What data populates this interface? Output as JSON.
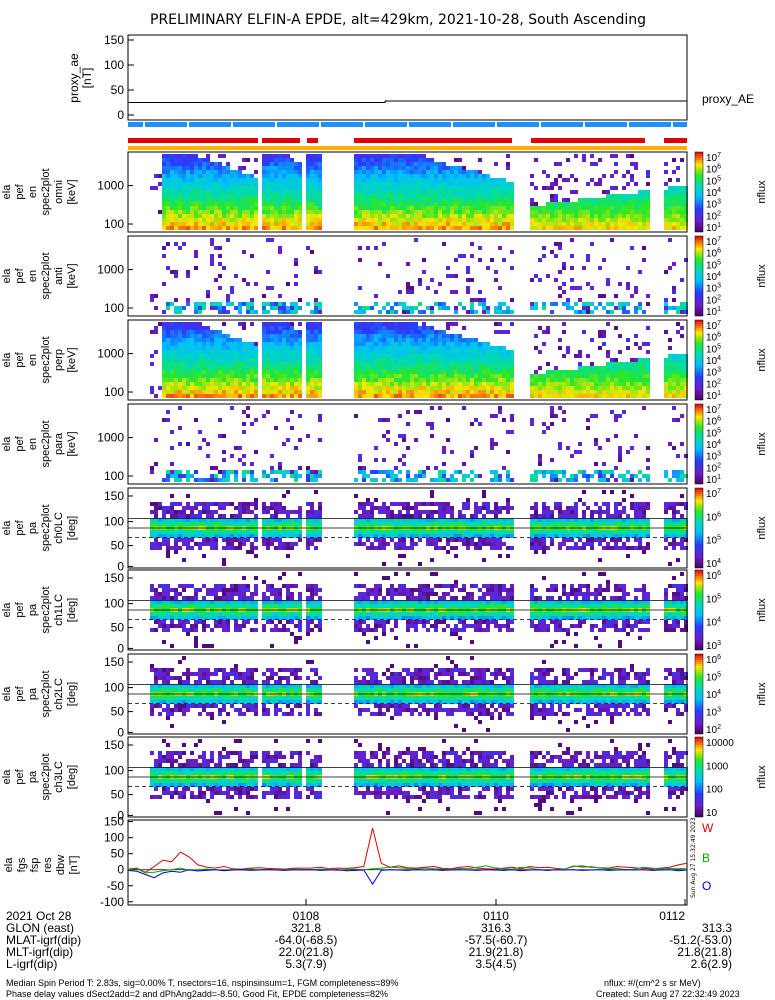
{
  "title": "PRELIMINARY ELFIN-A EPDE, alt=429km, 2021-10-28, South Ascending",
  "legend_proxy": "proxy_AE",
  "chart_data": [
    {
      "type": "line",
      "ylabel": [
        "proxy_ae",
        "[nT]"
      ],
      "yticks": [
        "150",
        "100",
        "50",
        "0"
      ],
      "ylim": [
        -10,
        160
      ],
      "series": [
        {
          "name": "proxy_AE",
          "x": [
            0,
            0.46,
            0.46,
            1.0
          ],
          "values": [
            25,
            25,
            28,
            28
          ]
        }
      ]
    },
    {
      "type": "heatmap",
      "panels": [
        {
          "ylabel": [
            "ela",
            "pef",
            "en",
            "spec2plot",
            "omni",
            "[keV]"
          ],
          "yticks": [
            "1000",
            "100"
          ],
          "cbar_ticks": [
            "10<sup>7</sup>",
            "10<sup>6</sup>",
            "10<sup>5</sup>",
            "10<sup>4</sup>",
            "10<sup>3</sup>",
            "10<sup>2</sup>",
            "10<sup>1</sup>"
          ],
          "zlabel": "nflux"
        },
        {
          "ylabel": [
            "ela",
            "pef",
            "en",
            "spec2plot",
            "anti",
            "[keV]"
          ],
          "yticks": [
            "1000",
            "100"
          ],
          "cbar_ticks": [
            "10<sup>7</sup>",
            "10<sup>6</sup>",
            "10<sup>5</sup>",
            "10<sup>4</sup>",
            "10<sup>3</sup>",
            "10<sup>2</sup>",
            "10<sup>1</sup>"
          ],
          "zlabel": "nflux"
        },
        {
          "ylabel": [
            "ela",
            "pef",
            "en",
            "spec2plot",
            "perp",
            "[keV]"
          ],
          "yticks": [
            "1000",
            "100"
          ],
          "cbar_ticks": [
            "10<sup>7</sup>",
            "10<sup>6</sup>",
            "10<sup>5</sup>",
            "10<sup>4</sup>",
            "10<sup>3</sup>",
            "10<sup>2</sup>",
            "10<sup>1</sup>"
          ],
          "zlabel": "nflux"
        },
        {
          "ylabel": [
            "ela",
            "pef",
            "en",
            "spec2plot",
            "para",
            "[keV]"
          ],
          "yticks": [
            "1000",
            "100"
          ],
          "cbar_ticks": [
            "10<sup>7</sup>",
            "10<sup>6</sup>",
            "10<sup>5</sup>",
            "10<sup>4</sup>",
            "10<sup>3</sup>",
            "10<sup>2</sup>",
            "10<sup>1</sup>"
          ],
          "zlabel": "nflux"
        },
        {
          "ylabel": [
            "ela",
            "pef",
            "pa",
            "spec2plot",
            "ch0LC",
            "[deg]"
          ],
          "yticks": [
            "150",
            "100",
            "50",
            "0"
          ],
          "cbar_ticks": [
            "10<sup>7</sup>",
            "10<sup>6</sup>",
            "10<sup>5</sup>",
            "10<sup>4</sup>"
          ],
          "zlabel": "nflux"
        },
        {
          "ylabel": [
            "ela",
            "pef",
            "pa",
            "spec2plot",
            "ch1LC",
            "[deg]"
          ],
          "yticks": [
            "150",
            "100",
            "50",
            "0"
          ],
          "cbar_ticks": [
            "10<sup>6</sup>",
            "10<sup>5</sup>",
            "10<sup>4</sup>",
            "10<sup>3</sup>"
          ],
          "zlabel": "nflux"
        },
        {
          "ylabel": [
            "ela",
            "pef",
            "pa",
            "spec2plot",
            "ch2LC",
            "[deg]"
          ],
          "yticks": [
            "150",
            "100",
            "50",
            "0"
          ],
          "cbar_ticks": [
            "10<sup>6</sup>",
            "10<sup>5</sup>",
            "10<sup>4</sup>",
            "10<sup>3</sup>",
            "10<sup>2</sup>"
          ],
          "zlabel": "nflux"
        },
        {
          "ylabel": [
            "ela",
            "pef",
            "pa",
            "spec2plot",
            "ch3LC",
            "[deg]"
          ],
          "yticks": [
            "150",
            "100",
            "50",
            "0"
          ],
          "cbar_ticks": [
            "10000",
            "1000",
            "100",
            "10"
          ],
          "zlabel": "nflux"
        }
      ]
    },
    {
      "type": "line",
      "ylabel": [
        "ela",
        "fgs",
        "fsp",
        "res",
        "dbw",
        "[nT]"
      ],
      "yticks": [
        "150",
        "100",
        "50",
        "0",
        "-50",
        "-100"
      ],
      "ylim": [
        -110,
        155
      ],
      "series": [
        {
          "name": "W",
          "color": "#e00000",
          "values": [
            2,
            5,
            -8,
            10,
            30,
            25,
            55,
            40,
            15,
            8,
            5,
            10,
            3,
            2,
            5,
            6,
            4,
            3,
            2,
            5,
            5,
            5,
            8,
            3,
            5,
            4,
            6,
            10,
            130,
            20,
            8,
            12,
            6,
            5,
            8,
            10,
            4,
            3,
            8,
            10,
            5,
            3,
            2,
            5,
            8,
            3,
            10,
            6,
            8,
            4,
            2,
            10,
            12,
            8,
            6,
            5,
            10,
            8,
            6,
            4,
            3,
            5,
            8,
            15,
            20
          ]
        },
        {
          "name": "B",
          "color": "#00b000",
          "values": [
            0,
            3,
            -10,
            -8,
            -3,
            0,
            5,
            -2,
            0,
            2,
            0,
            -2,
            1,
            0,
            2,
            0,
            1,
            -1,
            0,
            2,
            1,
            0,
            2,
            0,
            -2,
            1,
            2,
            0,
            3,
            5,
            8,
            6,
            4,
            2,
            5,
            3,
            2,
            0,
            4,
            3,
            8,
            12,
            6,
            3,
            2,
            8,
            5,
            0,
            -2,
            0,
            2,
            12,
            8,
            10,
            5,
            2,
            4,
            0,
            2,
            8,
            5,
            2,
            4,
            3,
            5
          ]
        },
        {
          "name": "O",
          "color": "#0000e0",
          "values": [
            -2,
            -5,
            -15,
            -25,
            -10,
            -5,
            -8,
            0,
            -4,
            -2,
            0,
            -3,
            -1,
            0,
            -2,
            -1,
            0,
            -1,
            -2,
            0,
            -1,
            0,
            -2,
            -1,
            0,
            -3,
            -2,
            -1,
            -45,
            -2,
            0,
            -1,
            -2,
            0,
            -1,
            0,
            -2,
            -1,
            0,
            -1,
            -2,
            0,
            -1,
            -2,
            0,
            -3,
            -1,
            0,
            -2,
            0,
            -1,
            0,
            -2,
            -1,
            0,
            -2,
            -1,
            0,
            -1,
            0,
            -2,
            -1,
            0,
            -3,
            -1
          ]
        }
      ]
    }
  ],
  "stamp": "Sun Aug 27 15:32:49 2023",
  "xaxis": {
    "date": "2021 Oct 28",
    "row_labels": [
      "GLON (east)",
      "MLAT-igrf(dip)",
      "MLT-igrf(dip)",
      "L-igrf(dip)"
    ],
    "ticks": [
      {
        "time": "0108",
        "values": [
          "321.8",
          "-64.0(-68.5)",
          "22.0(21.8)",
          "5.3(7.9)"
        ]
      },
      {
        "time": "0110",
        "values": [
          "316.3",
          "-57.5(-60.7)",
          "21.9(21.8)",
          "3.5(4.5)"
        ]
      },
      {
        "time": "0112",
        "values": [
          "313.3",
          "-51.2(-53.0)",
          "21.8(21.8)",
          "2.6(2.9)"
        ]
      }
    ]
  },
  "footer": {
    "left1": "Median Spin Period T: 2.83s, sig=0.00% T, nsectors=16, nspinsinsum=1, FGM completeness=89%",
    "left2": "Phase delay values dSect2add=2 and dPhAng2add=-8.50, Good Fit, EPDE completeness=82%",
    "right1": "nflux: #/(cm^2 s sr MeV)",
    "right2": "Created: Sun Aug 27 22:32:49 2023"
  }
}
